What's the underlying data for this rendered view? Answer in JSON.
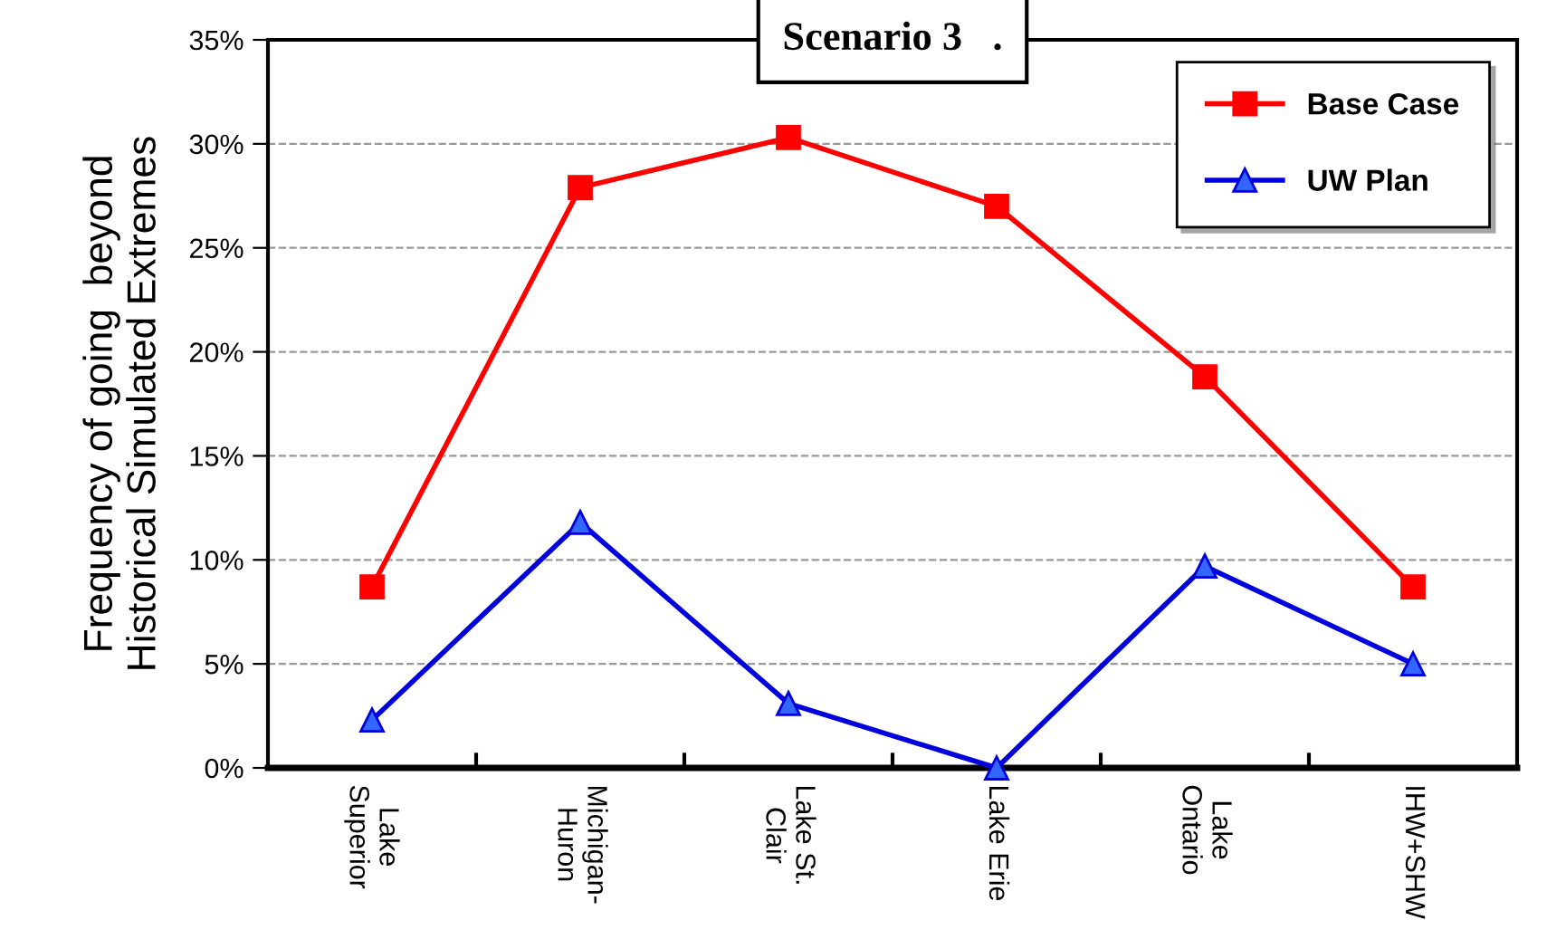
{
  "chart_data": {
    "type": "line",
    "title": "Scenario 3   .",
    "ylabel": "Frequency of going  beyond\nHistorical Simulated Extremes",
    "categories": [
      "Lake\nSuperior",
      "Michigan-\nHuron",
      "Lake St.\nClair",
      "Lake Erie",
      "Lake\nOntario",
      "IHW+SHW"
    ],
    "series": [
      {
        "name": "Base Case",
        "color": "#ff0000",
        "marker": "square",
        "values": [
          8.7,
          27.9,
          30.3,
          27.0,
          18.8,
          8.7
        ]
      },
      {
        "name": "UW Plan",
        "color": "#0000dd",
        "marker": "triangle",
        "values": [
          2.3,
          11.8,
          3.1,
          0,
          9.7,
          5.0
        ]
      }
    ],
    "ylim": [
      0,
      35
    ],
    "yticks": [
      {
        "value": 0,
        "label": "0%"
      },
      {
        "value": 5,
        "label": "5%"
      },
      {
        "value": 10,
        "label": "10%"
      },
      {
        "value": 15,
        "label": "15%"
      },
      {
        "value": 20,
        "label": "20%"
      },
      {
        "value": 25,
        "label": "25%"
      },
      {
        "value": 30,
        "label": "30%"
      },
      {
        "value": 35,
        "label": "35%"
      }
    ],
    "grid": "y",
    "legend": "top right",
    "line_style": "solid"
  }
}
